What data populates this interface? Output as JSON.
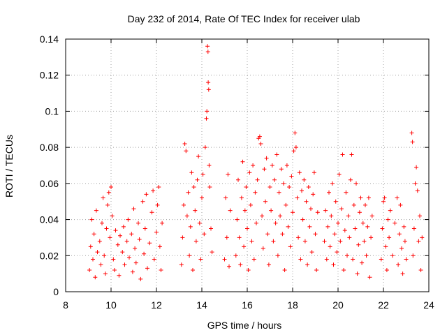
{
  "chart_data": {
    "type": "scatter",
    "title": "Day 232 of 2014, Rate Of TEC Index for receiver ulab",
    "xlabel": "GPS time / hours",
    "ylabel": "ROTI / TECUs",
    "xlim": [
      8,
      24
    ],
    "ylim": [
      0,
      0.14
    ],
    "xticks": [
      8,
      10,
      12,
      14,
      16,
      18,
      20,
      22,
      24
    ],
    "xtick_labels": [
      "8",
      "10",
      "12",
      "14",
      "16",
      "18",
      "20",
      "22",
      "24"
    ],
    "yticks": [
      0,
      0.02,
      0.04,
      0.06,
      0.08,
      0.1,
      0.12,
      0.14
    ],
    "ytick_labels": [
      "0",
      "0.02",
      "0.04",
      "0.06",
      "0.08",
      "0.1",
      "0.12",
      "0.14"
    ],
    "grid": true,
    "marker": "plus",
    "series": [
      {
        "name": "ROTI",
        "color": "#ff0000",
        "points": [
          [
            9.05,
            0.012
          ],
          [
            9.1,
            0.025
          ],
          [
            9.15,
            0.04
          ],
          [
            9.2,
            0.018
          ],
          [
            9.25,
            0.032
          ],
          [
            9.3,
            0.008
          ],
          [
            9.35,
            0.045
          ],
          [
            9.4,
            0.022
          ],
          [
            9.5,
            0.028
          ],
          [
            9.55,
            0.015
          ],
          [
            9.6,
            0.038
          ],
          [
            9.65,
            0.052
          ],
          [
            9.7,
            0.02
          ],
          [
            9.75,
            0.01
          ],
          [
            9.8,
            0.035
          ],
          [
            9.85,
            0.048
          ],
          [
            9.9,
            0.055
          ],
          [
            9.95,
            0.03
          ],
          [
            10.0,
            0.058
          ],
          [
            10.05,
            0.042
          ],
          [
            10.1,
            0.018
          ],
          [
            10.15,
            0.012
          ],
          [
            10.2,
            0.034
          ],
          [
            10.3,
            0.026
          ],
          [
            10.35,
            0.009
          ],
          [
            10.4,
            0.031
          ],
          [
            10.5,
            0.022
          ],
          [
            10.55,
            0.036
          ],
          [
            10.6,
            0.015
          ],
          [
            10.7,
            0.028
          ],
          [
            10.75,
            0.04
          ],
          [
            10.8,
            0.019
          ],
          [
            10.9,
            0.032
          ],
          [
            10.95,
            0.011
          ],
          [
            11.0,
            0.046
          ],
          [
            11.05,
            0.024
          ],
          [
            11.1,
            0.016
          ],
          [
            11.2,
            0.038
          ],
          [
            11.25,
            0.029
          ],
          [
            11.3,
            0.007
          ],
          [
            11.4,
            0.05
          ],
          [
            11.45,
            0.021
          ],
          [
            11.5,
            0.035
          ],
          [
            11.55,
            0.054
          ],
          [
            11.6,
            0.013
          ],
          [
            11.7,
            0.027
          ],
          [
            11.8,
            0.044
          ],
          [
            11.85,
            0.056
          ],
          [
            11.9,
            0.018
          ],
          [
            12.0,
            0.033
          ],
          [
            12.05,
            0.048
          ],
          [
            12.1,
            0.058
          ],
          [
            12.15,
            0.025
          ],
          [
            12.2,
            0.012
          ],
          [
            12.25,
            0.038
          ],
          [
            13.1,
            0.015
          ],
          [
            13.15,
            0.03
          ],
          [
            13.2,
            0.048
          ],
          [
            13.25,
            0.082
          ],
          [
            13.3,
            0.078
          ],
          [
            13.35,
            0.042
          ],
          [
            13.4,
            0.055
          ],
          [
            13.45,
            0.02
          ],
          [
            13.5,
            0.036
          ],
          [
            13.55,
            0.066
          ],
          [
            13.6,
            0.012
          ],
          [
            13.65,
            0.058
          ],
          [
            13.7,
            0.045
          ],
          [
            13.75,
            0.028
          ],
          [
            13.8,
            0.062
          ],
          [
            13.85,
            0.075
          ],
          [
            13.9,
            0.038
          ],
          [
            13.95,
            0.018
          ],
          [
            14.0,
            0.052
          ],
          [
            14.05,
            0.065
          ],
          [
            14.1,
            0.032
          ],
          [
            14.15,
            0.08
          ],
          [
            14.2,
            0.096
          ],
          [
            14.22,
            0.1
          ],
          [
            14.25,
            0.136
          ],
          [
            14.27,
            0.133
          ],
          [
            14.28,
            0.116
          ],
          [
            14.3,
            0.112
          ],
          [
            14.32,
            0.07
          ],
          [
            14.35,
            0.058
          ],
          [
            14.4,
            0.035
          ],
          [
            14.45,
            0.022
          ],
          [
            15.0,
            0.018
          ],
          [
            15.05,
            0.052
          ],
          [
            15.1,
            0.03
          ],
          [
            15.15,
            0.065
          ],
          [
            15.2,
            0.014
          ],
          [
            15.25,
            0.045
          ],
          [
            15.5,
            0.02
          ],
          [
            15.55,
            0.04
          ],
          [
            15.6,
            0.062
          ],
          [
            15.65,
            0.03
          ],
          [
            15.7,
            0.015
          ],
          [
            15.75,
            0.052
          ],
          [
            15.8,
            0.072
          ],
          [
            15.85,
            0.025
          ],
          [
            15.9,
            0.045
          ],
          [
            15.95,
            0.058
          ],
          [
            16.0,
            0.035
          ],
          [
            16.05,
            0.012
          ],
          [
            16.1,
            0.066
          ],
          [
            16.15,
            0.048
          ],
          [
            16.2,
            0.028
          ],
          [
            16.25,
            0.07
          ],
          [
            16.3,
            0.018
          ],
          [
            16.35,
            0.055
          ],
          [
            16.4,
            0.038
          ],
          [
            16.45,
            0.062
          ],
          [
            16.5,
            0.085
          ],
          [
            16.55,
            0.086
          ],
          [
            16.6,
            0.082
          ],
          [
            16.65,
            0.042
          ],
          [
            16.7,
            0.024
          ],
          [
            16.75,
            0.068
          ],
          [
            16.8,
            0.05
          ],
          [
            16.85,
            0.074
          ],
          [
            16.9,
            0.032
          ],
          [
            16.95,
            0.015
          ],
          [
            17.0,
            0.058
          ],
          [
            17.05,
            0.045
          ],
          [
            17.1,
            0.07
          ],
          [
            17.15,
            0.028
          ],
          [
            17.2,
            0.062
          ],
          [
            17.25,
            0.038
          ],
          [
            17.3,
            0.076
          ],
          [
            17.35,
            0.02
          ],
          [
            17.4,
            0.055
          ],
          [
            17.45,
            0.042
          ],
          [
            17.5,
            0.068
          ],
          [
            17.55,
            0.032
          ],
          [
            17.6,
            0.06
          ],
          [
            17.65,
            0.012
          ],
          [
            17.7,
            0.048
          ],
          [
            17.75,
            0.07
          ],
          [
            17.8,
            0.036
          ],
          [
            17.85,
            0.058
          ],
          [
            17.9,
            0.025
          ],
          [
            17.95,
            0.064
          ],
          [
            18.0,
            0.044
          ],
          [
            18.05,
            0.078
          ],
          [
            18.1,
            0.088
          ],
          [
            18.15,
            0.08
          ],
          [
            18.2,
            0.052
          ],
          [
            18.25,
            0.03
          ],
          [
            18.3,
            0.066
          ],
          [
            18.35,
            0.018
          ],
          [
            18.4,
            0.056
          ],
          [
            18.45,
            0.04
          ],
          [
            18.5,
            0.062
          ],
          [
            18.55,
            0.028
          ],
          [
            18.6,
            0.05
          ],
          [
            18.65,
            0.015
          ],
          [
            18.7,
            0.058
          ],
          [
            18.75,
            0.036
          ],
          [
            18.8,
            0.046
          ],
          [
            18.85,
            0.022
          ],
          [
            18.9,
            0.054
          ],
          [
            18.95,
            0.066
          ],
          [
            19.0,
            0.032
          ],
          [
            19.05,
            0.012
          ],
          [
            19.1,
            0.044
          ],
          [
            19.4,
            0.028
          ],
          [
            19.45,
            0.045
          ],
          [
            19.5,
            0.018
          ],
          [
            19.55,
            0.036
          ],
          [
            19.6,
            0.055
          ],
          [
            19.65,
            0.025
          ],
          [
            19.7,
            0.042
          ],
          [
            19.75,
            0.06
          ],
          [
            19.8,
            0.015
          ],
          [
            19.85,
            0.032
          ],
          [
            19.9,
            0.05
          ],
          [
            19.95,
            0.022
          ],
          [
            20.0,
            0.038
          ],
          [
            20.05,
            0.065
          ],
          [
            20.1,
            0.028
          ],
          [
            20.15,
            0.046
          ],
          [
            20.2,
            0.076
          ],
          [
            20.25,
            0.012
          ],
          [
            20.3,
            0.034
          ],
          [
            20.35,
            0.055
          ],
          [
            20.4,
            0.02
          ],
          [
            20.45,
            0.042
          ],
          [
            20.5,
            0.03
          ],
          [
            20.55,
            0.062
          ],
          [
            20.6,
            0.076
          ],
          [
            20.65,
            0.018
          ],
          [
            20.7,
            0.048
          ],
          [
            20.75,
            0.035
          ],
          [
            20.8,
            0.06
          ],
          [
            20.85,
            0.01
          ],
          [
            20.9,
            0.026
          ],
          [
            20.95,
            0.044
          ],
          [
            21.0,
            0.052
          ],
          [
            21.05,
            0.016
          ],
          [
            21.1,
            0.038
          ],
          [
            21.15,
            0.028
          ],
          [
            21.2,
            0.048
          ],
          [
            21.25,
            0.02
          ],
          [
            21.3,
            0.036
          ],
          [
            21.35,
            0.052
          ],
          [
            21.4,
            0.008
          ],
          [
            21.45,
            0.03
          ],
          [
            21.5,
            0.042
          ],
          [
            21.9,
            0.018
          ],
          [
            21.95,
            0.035
          ],
          [
            22.0,
            0.05
          ],
          [
            22.05,
            0.052
          ],
          [
            22.1,
            0.025
          ],
          [
            22.15,
            0.012
          ],
          [
            22.2,
            0.04
          ],
          [
            22.25,
            0.03
          ],
          [
            22.3,
            0.045
          ],
          [
            22.4,
            0.02
          ],
          [
            22.5,
            0.038
          ],
          [
            22.6,
            0.052
          ],
          [
            22.65,
            0.015
          ],
          [
            22.7,
            0.032
          ],
          [
            22.75,
            0.048
          ],
          [
            22.8,
            0.024
          ],
          [
            22.85,
            0.01
          ],
          [
            22.9,
            0.036
          ],
          [
            22.95,
            0.028
          ],
          [
            23.0,
            0.018
          ],
          [
            23.25,
            0.088
          ],
          [
            23.28,
            0.083
          ],
          [
            23.3,
            0.02
          ],
          [
            23.35,
            0.035
          ],
          [
            23.4,
            0.06
          ],
          [
            23.45,
            0.069
          ],
          [
            23.5,
            0.056
          ],
          [
            23.55,
            0.028
          ],
          [
            23.6,
            0.042
          ],
          [
            23.65,
            0.012
          ],
          [
            23.7,
            0.03
          ]
        ]
      }
    ]
  }
}
